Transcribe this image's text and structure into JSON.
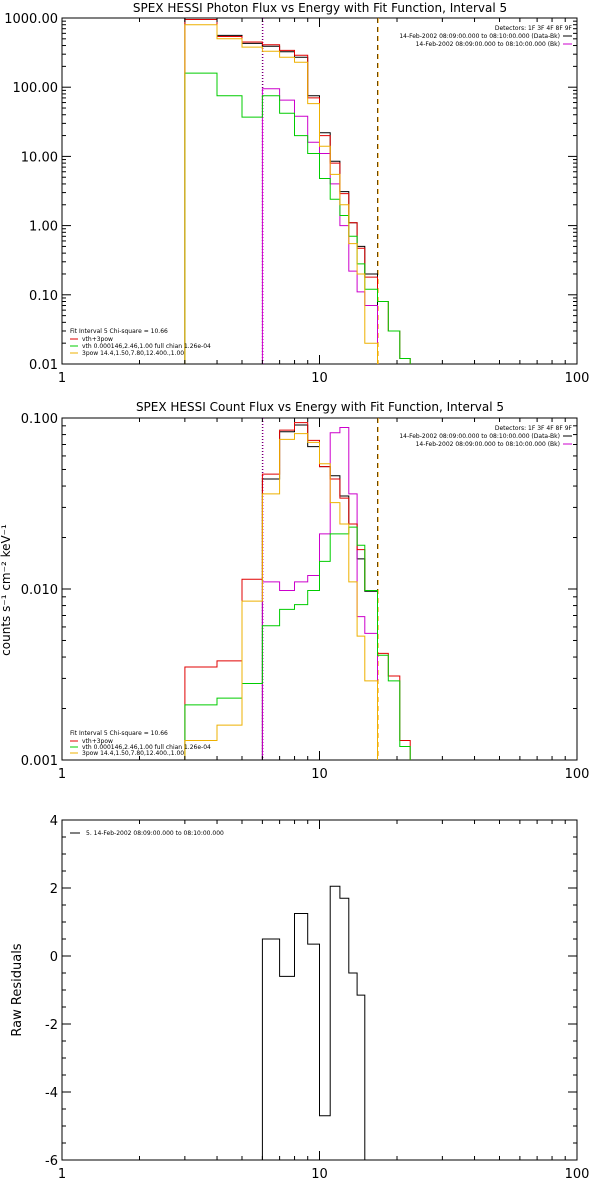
{
  "chart_data": [
    {
      "type": "line",
      "scale": {
        "x": "log",
        "y": "log"
      },
      "title": "SPEX HESSI Photon Flux vs Energy with Fit Function, Interval 5",
      "xlim": [
        1,
        100
      ],
      "ylim": [
        0.01,
        1000
      ],
      "xticks": [
        1,
        10,
        100
      ],
      "xtick_labels": [
        "1",
        "10",
        "100"
      ],
      "yticks": [
        0.01,
        0.1,
        1,
        10,
        100,
        1000
      ],
      "ytick_labels": [
        "0.01",
        "0.10",
        "1.00",
        "10.00",
        "100.00",
        "1000.00"
      ],
      "vlines": [
        {
          "x": 6.0,
          "style": "dotted",
          "color": "#000000"
        },
        {
          "x": 16.8,
          "style": "dashed",
          "color": "#000000"
        },
        {
          "x": 6.0,
          "style": "dotted",
          "color": "#cc00cc"
        },
        {
          "x": 16.8,
          "style": "dashed",
          "color": "#ffaa00"
        }
      ],
      "header_text": {
        "detectors": "Detectors: 1F 3F 4F 8F 9F",
        "lines": [
          {
            "text": "14-Feb-2002 08:09:00.000 to 08:10:00.000 (Data-Bk)",
            "color": "#000000"
          },
          {
            "text": "14-Feb-2002 08:09:00.000 to 08:10:00.000 (Bk)",
            "color": "#cc00cc"
          }
        ]
      },
      "fit_legend": {
        "header": "Fit Interval  5    Chi-square = 10.66",
        "entries": [
          {
            "text": "vth+3pow",
            "color": "#e00000"
          },
          {
            "text": "vth 0.000146,2.46,1.00   full chian 1.26e-04",
            "color": "#00cc00"
          },
          {
            "text": "3pow 14.4,1.50,7.80,12.400.,1.00",
            "color": "#eeb000"
          }
        ]
      },
      "bin_edges": [
        3.0,
        4.0,
        5.0,
        6.0,
        7.0,
        8.0,
        9.0,
        10.0,
        11.0,
        12.0,
        13.0,
        14.0,
        15.0,
        16.8,
        18.5,
        20.5,
        22.5
      ],
      "series": [
        {
          "name": "Data-Bk",
          "color": "#000000",
          "values": [
            1000,
            560,
            430,
            390,
            325,
            270,
            75,
            22,
            8.5,
            3.1,
            1.1,
            0.5,
            0.2,
            null,
            null,
            null
          ]
        },
        {
          "name": "Bk",
          "color": "#cc00cc",
          "values": [
            null,
            null,
            null,
            95,
            65,
            38,
            16,
            11,
            4.0,
            1.0,
            0.22,
            0.11,
            0.07,
            null,
            null,
            null
          ]
        },
        {
          "name": "vth+3pow",
          "color": "#e00000",
          "values": [
            950,
            540,
            450,
            410,
            340,
            290,
            70,
            20,
            8.0,
            2.9,
            1.1,
            0.47,
            0.18,
            0.08,
            0.03,
            0.012
          ]
        },
        {
          "name": "vth",
          "color": "#00cc00",
          "values": [
            160,
            75,
            37,
            75,
            42,
            20,
            11,
            4.8,
            2.4,
            1.4,
            0.7,
            0.28,
            0.12,
            0.08,
            0.03,
            0.012
          ]
        },
        {
          "name": "3pow",
          "color": "#eeb000",
          "values": [
            800,
            500,
            380,
            330,
            270,
            230,
            58,
            14,
            5.5,
            2.0,
            0.55,
            0.2,
            0.02,
            null,
            null,
            null
          ]
        }
      ]
    },
    {
      "type": "line",
      "scale": {
        "x": "log",
        "y": "log"
      },
      "title": "SPEX HESSI Count Flux vs Energy with Fit Function, Interval 5",
      "ylabel": "counts s⁻¹ cm⁻² keV⁻¹",
      "xlim": [
        1,
        100
      ],
      "ylim": [
        0.001,
        0.1
      ],
      "xticks": [
        1,
        10,
        100
      ],
      "xtick_labels": [
        "1",
        "10",
        "100"
      ],
      "yticks": [
        0.001,
        0.01,
        0.1
      ],
      "ytick_labels": [
        "0.001",
        "0.010",
        "0.100"
      ],
      "vlines": [
        {
          "x": 6.0,
          "style": "dotted",
          "color": "#000000"
        },
        {
          "x": 16.8,
          "style": "dashed",
          "color": "#000000"
        },
        {
          "x": 6.0,
          "style": "dotted",
          "color": "#cc00cc"
        },
        {
          "x": 16.8,
          "style": "dashed",
          "color": "#ffaa00"
        }
      ],
      "header_text": {
        "detectors": "Detectors: 1F 3F 4F 8F 9F",
        "lines": [
          {
            "text": "14-Feb-2002 08:09:00.000 to 08:10:00.000 (Data-Bk)",
            "color": "#000000"
          },
          {
            "text": "14-Feb-2002 08:09:00.000 to 08:10:00.000 (Bk)",
            "color": "#cc00cc"
          }
        ]
      },
      "fit_legend": {
        "header": "Fit Interval  5    Chi-square = 10.66",
        "entries": [
          {
            "text": "vth+3pow",
            "color": "#e00000"
          },
          {
            "text": "vth 0.000146,2.46,1.00   full chian 1.26e-04",
            "color": "#00cc00"
          },
          {
            "text": "3pow 14.4,1.50,7.80,12.400.,1.00",
            "color": "#eeb000"
          }
        ]
      },
      "bin_edges": [
        3.0,
        4.0,
        5.0,
        6.0,
        7.0,
        8.0,
        9.0,
        10.0,
        11.0,
        12.0,
        13.0,
        14.0,
        15.0,
        16.8,
        18.5,
        20.5,
        22.5
      ],
      "series": [
        {
          "name": "Data-Bk",
          "color": "#000000",
          "values": [
            null,
            null,
            null,
            0.044,
            0.083,
            0.091,
            0.068,
            0.052,
            0.046,
            0.035,
            0.024,
            0.015,
            0.0097,
            null,
            null,
            null
          ]
        },
        {
          "name": "Bk",
          "color": "#cc00cc",
          "values": [
            null,
            null,
            null,
            0.011,
            0.0098,
            0.011,
            0.012,
            0.021,
            0.082,
            0.088,
            0.036,
            0.0069,
            0.0055,
            null,
            null,
            null
          ]
        },
        {
          "name": "vth+3pow",
          "color": "#e00000",
          "values": [
            0.0035,
            0.0038,
            0.0114,
            0.047,
            0.085,
            0.094,
            0.074,
            0.052,
            0.044,
            0.034,
            0.024,
            0.017,
            0.0098,
            0.0042,
            0.0031,
            0.0013
          ]
        },
        {
          "name": "vth",
          "color": "#00cc00",
          "values": [
            0.0021,
            0.0023,
            0.0028,
            0.0061,
            0.0076,
            0.0081,
            0.0098,
            0.0145,
            0.021,
            0.021,
            0.023,
            0.018,
            0.0098,
            0.0041,
            0.0029,
            0.0012
          ]
        },
        {
          "name": "3pow",
          "color": "#eeb000",
          "values": [
            0.0013,
            0.0016,
            0.0085,
            0.036,
            0.075,
            0.081,
            0.072,
            0.054,
            0.032,
            0.024,
            0.011,
            0.0053,
            0.0029,
            null,
            null,
            null
          ]
        }
      ]
    },
    {
      "type": "line",
      "scale": {
        "x": "log",
        "y": "linear"
      },
      "title": "",
      "ylabel": "Raw Residuals",
      "xlim": [
        1,
        100
      ],
      "ylim": [
        -6,
        4
      ],
      "xticks": [
        1,
        10,
        100
      ],
      "xtick_labels": [
        "1",
        "10",
        "100"
      ],
      "yticks": [
        -6,
        -4,
        -2,
        0,
        2,
        4
      ],
      "ytick_labels": [
        "-6",
        "-4",
        "-2",
        "0",
        "2",
        "4"
      ],
      "legend": {
        "text": "5. 14-Feb-2002 08:09:00.000 to 08:10:00.000",
        "color": "#000000"
      },
      "bin_edges": [
        6.0,
        7.0,
        8.0,
        9.0,
        10.0,
        11.0,
        12.0,
        13.0,
        14.0,
        15.0,
        16.8
      ],
      "series": [
        {
          "name": "5. 14-Feb-2002 08:09:00.000 to 08:10:00.000",
          "color": "#000000",
          "values": [
            0.5,
            -0.6,
            1.25,
            0.35,
            -4.7,
            2.05,
            1.7,
            -0.5,
            -1.15,
            null
          ]
        }
      ]
    }
  ]
}
